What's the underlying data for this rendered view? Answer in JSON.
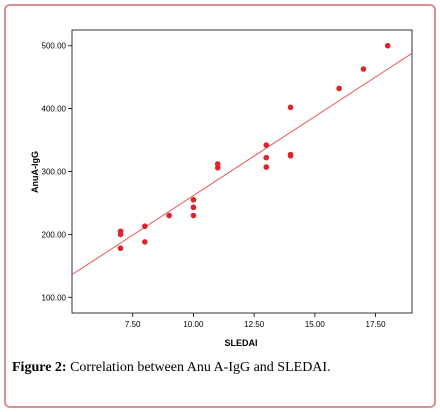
{
  "caption": {
    "label": "Figure 2:",
    "text": " Correlation between Anu A-IgG and SLEDAI."
  },
  "colors": {
    "point": "#e0222a",
    "fit_line": "#e85555",
    "plot_bg": "#ffffff",
    "frame": "#d88f8f"
  },
  "chart_data": {
    "type": "scatter",
    "title": "",
    "xlabel": "SLEDAI",
    "ylabel": "AnuA-IgG",
    "xlim": [
      5,
      19
    ],
    "ylim": [
      75,
      525
    ],
    "xticks": [
      "7.50",
      "10.00",
      "12.50",
      "15.00",
      "17.50"
    ],
    "yticks": [
      "100.00",
      "200.00",
      "300.00",
      "400.00",
      "500.00"
    ],
    "grid": false,
    "points": [
      {
        "x": 7,
        "y": 178
      },
      {
        "x": 7,
        "y": 200
      },
      {
        "x": 7,
        "y": 205
      },
      {
        "x": 8,
        "y": 188
      },
      {
        "x": 8,
        "y": 213
      },
      {
        "x": 9,
        "y": 230
      },
      {
        "x": 10,
        "y": 230
      },
      {
        "x": 10,
        "y": 243
      },
      {
        "x": 10,
        "y": 255
      },
      {
        "x": 11,
        "y": 306
      },
      {
        "x": 11,
        "y": 312
      },
      {
        "x": 13,
        "y": 307
      },
      {
        "x": 13,
        "y": 322
      },
      {
        "x": 13,
        "y": 342
      },
      {
        "x": 14,
        "y": 325
      },
      {
        "x": 14,
        "y": 327
      },
      {
        "x": 14,
        "y": 402
      },
      {
        "x": 16,
        "y": 432
      },
      {
        "x": 17,
        "y": 463
      },
      {
        "x": 18,
        "y": 500
      }
    ],
    "fit_line": [
      {
        "x": 5,
        "y": 136
      },
      {
        "x": 19,
        "y": 488
      }
    ]
  }
}
